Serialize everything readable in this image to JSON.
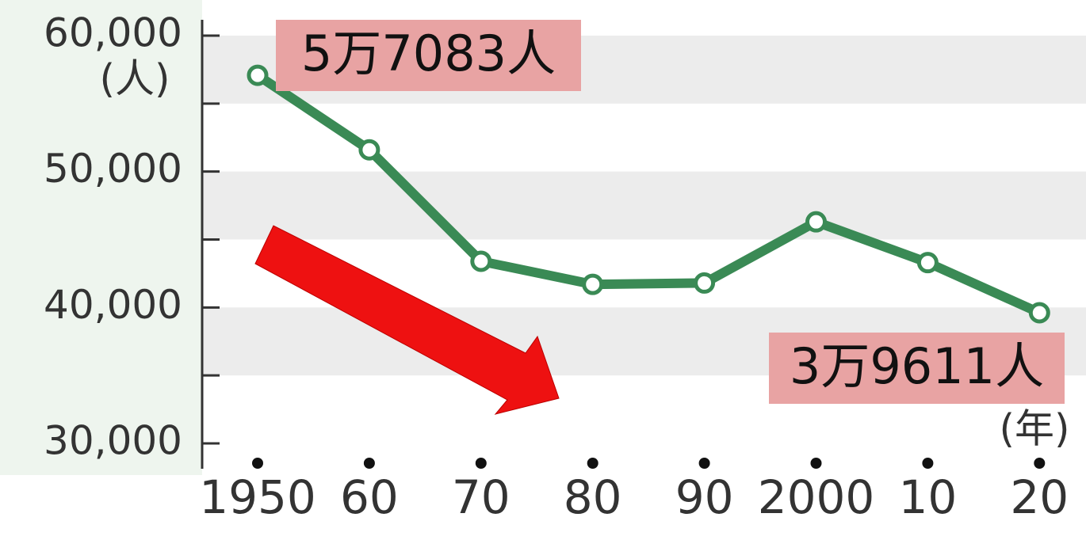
{
  "chart_data": {
    "type": "line",
    "categories": [
      "1950",
      "60",
      "70",
      "80",
      "90",
      "2000",
      "10",
      "20"
    ],
    "series": [
      {
        "name": null,
        "color": "#3a8a55",
        "values": [
          57083,
          51600,
          43400,
          41700,
          41800,
          46300,
          43300,
          39611
        ]
      }
    ],
    "ylim": [
      30000,
      60000
    ],
    "yticks": [
      {
        "value": 30000,
        "label": "30,000"
      },
      {
        "value": 40000,
        "label": "40,000"
      },
      {
        "value": 50000,
        "label": "50,000"
      },
      {
        "value": 60000,
        "label": "60,000"
      }
    ],
    "minor_yticks": [
      35000,
      45000,
      55000
    ],
    "ylabel": "(人)",
    "xlabel": "(年)",
    "annotations": [
      {
        "text": "5万7083人",
        "index": 0
      },
      {
        "text": "3万9611人",
        "index": 7
      }
    ]
  }
}
